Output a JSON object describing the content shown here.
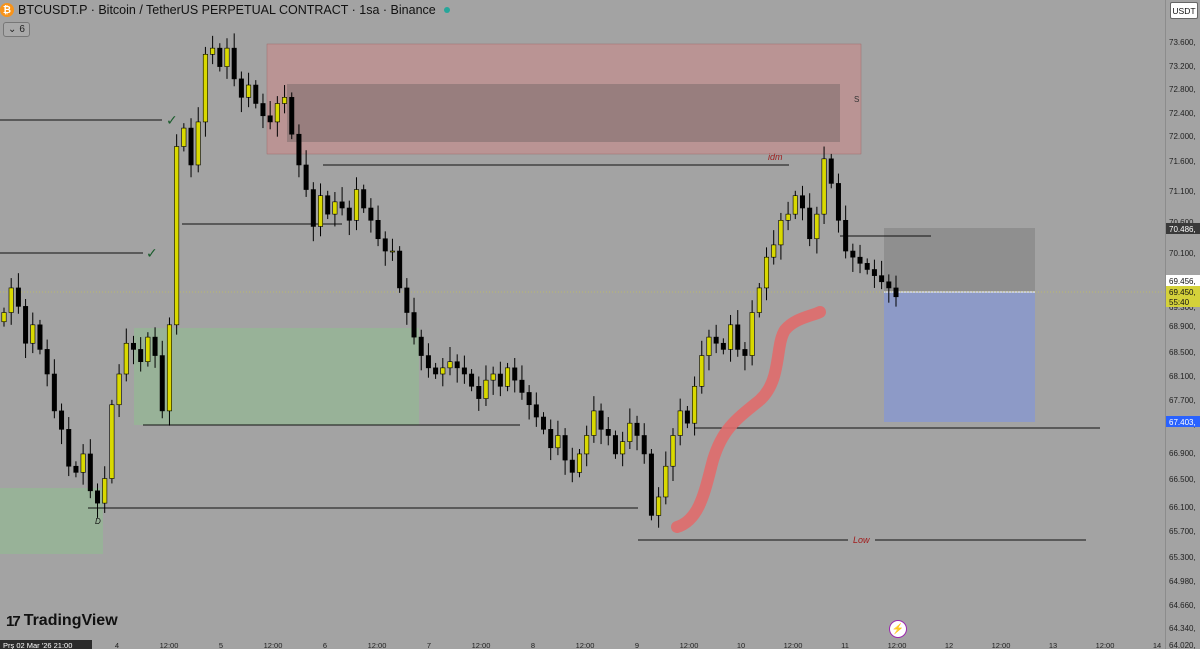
{
  "header": {
    "coin_icon": "bitcoin-icon",
    "title": "BTCUSDT.P · Bitcoin / TetherUS PERPETUAL CONTRACT · 1sa · Binance",
    "collapse_count": "6",
    "currency_button": "USDT"
  },
  "price_axis": {
    "ticks": [
      "73.600,",
      "73.200,",
      "72.800,",
      "72.400,",
      "72.000,",
      "71.600,",
      "71.100,",
      "70.600,",
      "70.100,",
      "69.700,",
      "69.300,",
      "68.900,",
      "68.500,",
      "68.100,",
      "67.700,",
      "67.300,",
      "66.900,",
      "66.500,",
      "66.100,",
      "65.700,",
      "65.300,",
      "64.980,",
      "64.660,",
      "64.340,",
      "64.020,"
    ],
    "labels": [
      {
        "text": "70.486,",
        "bg": "#3a3a3a",
        "fg": "#ffffff"
      },
      {
        "text": "69.456,",
        "bg": "#ffffff",
        "fg": "#111111"
      },
      {
        "text": "69.450,",
        "bg": "#d4d13a",
        "fg": "#111111"
      },
      {
        "text": "55:40",
        "bg": "#d4d13a",
        "fg": "#111111"
      },
      {
        "text": "67.403,",
        "bg": "#2962ff",
        "fg": "#ffffff"
      }
    ]
  },
  "time_axis": {
    "first_label": "Prş 02 Mar '26   21:00",
    "labels": [
      "4",
      "12:00",
      "5",
      "12:00",
      "6",
      "12:00",
      "7",
      "12:00",
      "8",
      "12:00",
      "9",
      "12:00",
      "10",
      "12:00",
      "11",
      "12:00",
      "12",
      "12:00",
      "13",
      "12:00",
      "14"
    ]
  },
  "annotations": {
    "s_label": "S",
    "idm_label": "idm",
    "low_label": "Low",
    "d_label": "D",
    "checkmark": "✓"
  },
  "branding": {
    "logo_text": "TradingView",
    "logo_mark": "17"
  },
  "colors": {
    "supply_zone": "#c98a8a",
    "demand_zone": "#8fbf8f",
    "target_zone": "#7f95e0",
    "bull_candle": "#d9d900",
    "bear_candle": "#000000",
    "path": "#e06b6b"
  },
  "chart_data": {
    "type": "candlestick",
    "symbol": "BTCUSDT.P",
    "interval": "1sa",
    "ylim": [
      64020,
      73700
    ],
    "current_price": 69450,
    "x_axis_labels": [
      "4",
      "12:00",
      "5",
      "12:00",
      "6",
      "12:00",
      "7",
      "12:00",
      "8",
      "12:00",
      "9",
      "12:00",
      "10",
      "12:00",
      "11",
      "12:00",
      "12",
      "12:00",
      "13",
      "12:00",
      "14"
    ],
    "closes": [
      69200,
      69600,
      69300,
      68700,
      69000,
      68600,
      68200,
      67600,
      67300,
      66700,
      66600,
      66900,
      66300,
      66100,
      66500,
      67700,
      68200,
      68700,
      68600,
      68400,
      68800,
      68500,
      67600,
      69000,
      71900,
      72200,
      71600,
      72300,
      73400,
      73500,
      73200,
      73500,
      73000,
      72700,
      72900,
      72600,
      72400,
      72300,
      72600,
      72700,
      72100,
      71600,
      71200,
      70600,
      71100,
      70800,
      71000,
      70900,
      70700,
      71200,
      70900,
      70700,
      70400,
      70200,
      70200,
      69600,
      69200,
      68800,
      68500,
      68300,
      68200,
      68300,
      68400,
      68300,
      68200,
      68000,
      67800,
      68100,
      68200,
      68000,
      68300,
      68100,
      67900,
      67700,
      67500,
      67300,
      67000,
      67200,
      66800,
      66600,
      66900,
      67200,
      67600,
      67300,
      67200,
      66900,
      67100,
      67400,
      67200,
      66900,
      65900,
      66200,
      66700,
      67200,
      67600,
      67400,
      68000,
      68500,
      68800,
      68700,
      68600,
      69000,
      68600,
      68500,
      69200,
      69600,
      70100,
      70300,
      70700,
      70800,
      71100,
      70900,
      70400,
      70800,
      71700,
      71300,
      70700,
      70200,
      70100,
      70000,
      69900,
      69800,
      69700,
      69600,
      69456
    ]
  }
}
